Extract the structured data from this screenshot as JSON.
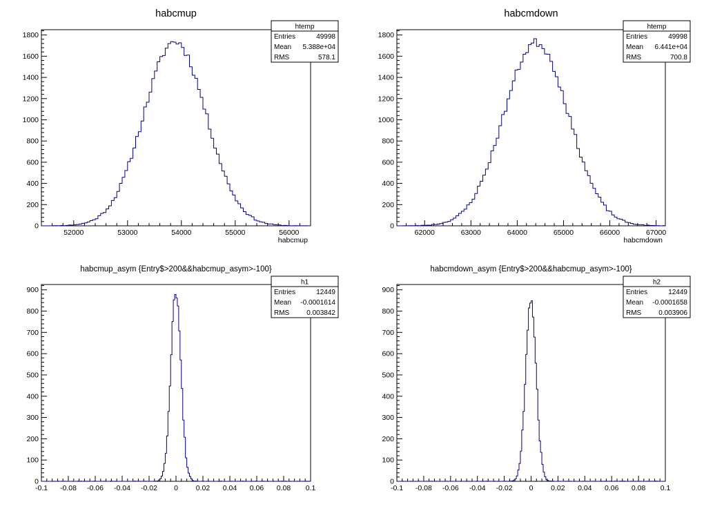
{
  "canvas": {
    "background": "#ffffff",
    "line_color": "#000080"
  },
  "chart_data": [
    {
      "type": "histogram",
      "title": "habcmup",
      "xlabel": "habcmup",
      "xlim": [
        51400,
        56400
      ],
      "ylim": [
        0,
        1850
      ],
      "x_ticks": [
        52000,
        53000,
        54000,
        55000,
        56000
      ],
      "x_tick_labels": [
        "52000",
        "53000",
        "54000",
        "55000",
        "56000"
      ],
      "y_ticks": [
        0,
        200,
        400,
        600,
        800,
        1000,
        1200,
        1400,
        1600,
        1800
      ],
      "y_tick_labels": [
        "0",
        "200",
        "400",
        "600",
        "800",
        "1000",
        "1200",
        "1400",
        "1600",
        "1800"
      ],
      "histogram": {
        "mean": 53880,
        "sigma": 578.1,
        "peak": 1740,
        "bins": 100,
        "jitter_seed": 11
      },
      "stats": {
        "name": "htemp",
        "rows": [
          [
            "Entries",
            "49998"
          ],
          [
            "Mean",
            "5.388e+04"
          ],
          [
            "RMS",
            "578.1"
          ]
        ]
      }
    },
    {
      "type": "histogram",
      "title": "habcmdown",
      "xlabel": "habcmdown",
      "xlim": [
        61400,
        67200
      ],
      "ylim": [
        0,
        1850
      ],
      "x_ticks": [
        62000,
        63000,
        64000,
        65000,
        66000,
        67000
      ],
      "x_tick_labels": [
        "62000",
        "63000",
        "64000",
        "65000",
        "66000",
        "67000"
      ],
      "y_ticks": [
        0,
        200,
        400,
        600,
        800,
        1000,
        1200,
        1400,
        1600,
        1800
      ],
      "y_tick_labels": [
        "0",
        "200",
        "400",
        "600",
        "800",
        "1000",
        "1200",
        "1400",
        "1600",
        "1800"
      ],
      "histogram": {
        "mean": 64410,
        "sigma": 700.8,
        "peak": 1730,
        "bins": 100,
        "jitter_seed": 23
      },
      "stats": {
        "name": "htemp",
        "rows": [
          [
            "Entries",
            "49998"
          ],
          [
            "Mean",
            "6.441e+04"
          ],
          [
            "RMS",
            "700.8"
          ]
        ]
      }
    },
    {
      "type": "histogram",
      "title": "habcmup_asym {Entry$>200&&habcmup_asym>-100}",
      "xlabel": "",
      "xlim": [
        -0.1,
        0.1
      ],
      "ylim": [
        0,
        925
      ],
      "x_ticks": [
        -0.1,
        -0.08,
        -0.06,
        -0.04,
        -0.02,
        0,
        0.02,
        0.04,
        0.06,
        0.08,
        0.1
      ],
      "x_tick_labels": [
        "-0.1",
        "-0.08",
        "-0.06",
        "-0.04",
        "-0.02",
        "0",
        "0.02",
        "0.04",
        "0.06",
        "0.08",
        "0.1"
      ],
      "y_ticks": [
        0,
        100,
        200,
        300,
        400,
        500,
        600,
        700,
        800,
        900
      ],
      "y_tick_labels": [
        "0",
        "100",
        "200",
        "300",
        "400",
        "500",
        "600",
        "700",
        "800",
        "900"
      ],
      "histogram": {
        "mean": -0.0001614,
        "sigma": 0.003842,
        "peak": 880,
        "bins": 200,
        "jitter_seed": 37
      },
      "stats": {
        "name": "h1",
        "rows": [
          [
            "Entries",
            "12449"
          ],
          [
            "Mean",
            "-0.0001614"
          ],
          [
            "RMS",
            "0.003842"
          ]
        ]
      }
    },
    {
      "type": "histogram",
      "title": "habcmdown_asym {Entry$>200&&habcmup_asym>-100}",
      "xlabel": "",
      "xlim": [
        -0.1,
        0.1
      ],
      "ylim": [
        0,
        925
      ],
      "x_ticks": [
        -0.1,
        -0.08,
        -0.06,
        -0.04,
        -0.02,
        0,
        0.02,
        0.04,
        0.06,
        0.08,
        0.1
      ],
      "x_tick_labels": [
        "-0.1",
        "-0.08",
        "-0.06",
        "-0.04",
        "-0.02",
        "0",
        "0.02",
        "0.04",
        "0.06",
        "0.08",
        "0.1"
      ],
      "y_ticks": [
        0,
        100,
        200,
        300,
        400,
        500,
        600,
        700,
        800,
        900
      ],
      "y_tick_labels": [
        "0",
        "100",
        "200",
        "300",
        "400",
        "500",
        "600",
        "700",
        "800",
        "900"
      ],
      "histogram": {
        "mean": -0.0001658,
        "sigma": 0.003906,
        "peak": 865,
        "bins": 200,
        "jitter_seed": 53
      },
      "stats": {
        "name": "h2",
        "rows": [
          [
            "Entries",
            "12449"
          ],
          [
            "Mean",
            "-0.0001658"
          ],
          [
            "RMS",
            "0.003906"
          ]
        ]
      }
    }
  ]
}
